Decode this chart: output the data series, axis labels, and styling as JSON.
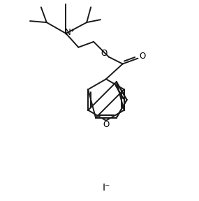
{
  "background_color": "#ffffff",
  "line_color": "#1a1a1a",
  "line_width": 1.4,
  "figsize": [
    2.85,
    2.88
  ],
  "dpi": 100,
  "iodide_label": "I⁻",
  "N_plus_label": "N⁺",
  "O_ester_label": "O",
  "O_carbonyl_label": "O",
  "O_xan_label": "O"
}
